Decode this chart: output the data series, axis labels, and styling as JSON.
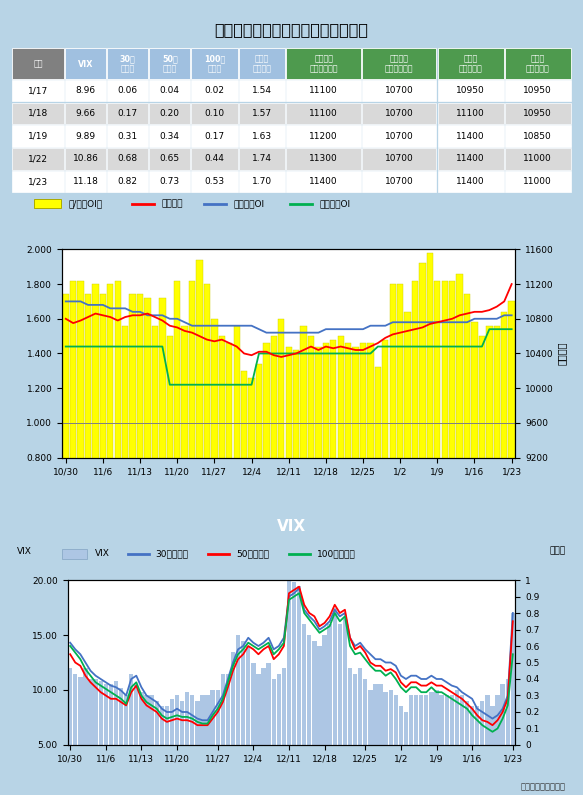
{
  "title": "選擇權波動率指數與賣買權未平倉比",
  "table": {
    "headers": [
      "日期",
      "VIX",
      "30日\n百分位",
      "50日\n百分位",
      "100日\n百分位",
      "賣買權\n未平倉比",
      "買權最大\n未平倉履約價",
      "賣權最大\n未平倉履約價",
      "週買權\n最大履約價",
      "週賣權\n最大履約價"
    ],
    "rows": [
      [
        "1/17",
        "8.96",
        "0.06",
        "0.04",
        "0.02",
        "1.54",
        "11100",
        "10700",
        "10950",
        "10950"
      ],
      [
        "1/18",
        "9.66",
        "0.17",
        "0.20",
        "0.10",
        "1.57",
        "11100",
        "10700",
        "11100",
        "10950"
      ],
      [
        "1/19",
        "9.89",
        "0.31",
        "0.34",
        "0.17",
        "1.63",
        "11200",
        "10700",
        "11400",
        "10850"
      ],
      [
        "1/22",
        "10.86",
        "0.68",
        "0.65",
        "0.44",
        "1.74",
        "11300",
        "10700",
        "11400",
        "11000"
      ],
      [
        "1/23",
        "11.18",
        "0.82",
        "0.73",
        "0.53",
        "1.70",
        "11400",
        "10700",
        "11400",
        "11000"
      ]
    ],
    "header_colors": [
      "#808080",
      "#a0c0e0",
      "#a0c0e0",
      "#a0c0e0",
      "#a0c0e0",
      "#a0c0e0",
      "#4e9a4e",
      "#4e9a4e",
      "#4e9a4e",
      "#4e9a4e"
    ],
    "row_colors": [
      "#ffffff",
      "#d9d9d9"
    ]
  },
  "chart1": {
    "legend": [
      "賣/買權OI比",
      "加權指數",
      "買權最大OI",
      "賣權最大OI"
    ],
    "legend_colors": [
      "#ffff00",
      "#ff0000",
      "#4472c4",
      "#00b050"
    ],
    "x_labels": [
      "10/30",
      "11/6",
      "11/13",
      "11/20",
      "11/27",
      "12/4",
      "12/11",
      "12/18",
      "12/25",
      "1/2",
      "1/9",
      "1/16",
      "1/23"
    ],
    "bar_data": [
      1.74,
      1.82,
      1.82,
      1.74,
      1.8,
      1.74,
      1.8,
      1.82,
      1.56,
      1.74,
      1.74,
      1.72,
      1.56,
      1.72,
      1.5,
      1.82,
      1.56,
      1.82,
      1.94,
      1.8,
      1.6,
      1.5,
      1.46,
      1.56,
      1.3,
      1.26,
      1.34,
      1.46,
      1.5,
      1.6,
      1.44,
      1.42,
      1.56,
      1.5,
      1.44,
      1.46,
      1.48,
      1.5,
      1.46,
      1.44,
      1.46,
      1.46,
      1.32,
      1.48,
      1.8,
      1.8,
      1.64,
      1.82,
      1.92,
      1.98,
      1.82,
      1.82,
      1.82,
      1.86,
      1.74,
      1.58,
      1.5,
      1.56,
      1.56,
      1.64,
      1.7
    ],
    "line_call_oi": [
      1.7,
      1.7,
      1.7,
      1.68,
      1.68,
      1.68,
      1.66,
      1.66,
      1.66,
      1.64,
      1.64,
      1.62,
      1.62,
      1.62,
      1.6,
      1.6,
      1.58,
      1.56,
      1.56,
      1.56,
      1.56,
      1.56,
      1.56,
      1.56,
      1.56,
      1.56,
      1.54,
      1.52,
      1.52,
      1.52,
      1.52,
      1.52,
      1.52,
      1.52,
      1.52,
      1.54,
      1.54,
      1.54,
      1.54,
      1.54,
      1.54,
      1.56,
      1.56,
      1.56,
      1.58,
      1.58,
      1.58,
      1.58,
      1.58,
      1.58,
      1.58,
      1.58,
      1.58,
      1.58,
      1.58,
      1.6,
      1.6,
      1.6,
      1.6,
      1.62,
      1.62
    ],
    "line_put_oi": [
      1.44,
      1.44,
      1.44,
      1.44,
      1.44,
      1.44,
      1.44,
      1.44,
      1.44,
      1.44,
      1.44,
      1.44,
      1.44,
      1.44,
      1.22,
      1.22,
      1.22,
      1.22,
      1.22,
      1.22,
      1.22,
      1.22,
      1.22,
      1.22,
      1.22,
      1.22,
      1.4,
      1.4,
      1.4,
      1.4,
      1.4,
      1.4,
      1.4,
      1.4,
      1.4,
      1.4,
      1.4,
      1.4,
      1.4,
      1.4,
      1.4,
      1.4,
      1.44,
      1.44,
      1.44,
      1.44,
      1.44,
      1.44,
      1.44,
      1.44,
      1.44,
      1.44,
      1.44,
      1.44,
      1.44,
      1.44,
      1.44,
      1.54,
      1.54,
      1.54,
      1.54
    ],
    "ylim_left": [
      0.8,
      2.0
    ],
    "yticks_left": [
      0.8,
      1.0,
      1.2,
      1.4,
      1.6,
      1.8,
      2.0
    ],
    "right_axis_label": "加權指數",
    "right_line_values": [
      10800,
      10750,
      10780,
      10820,
      10860,
      10840,
      10820,
      10780,
      10820,
      10840,
      10840,
      10860,
      10820,
      10780,
      10720,
      10700,
      10660,
      10640,
      10600,
      10560,
      10540,
      10560,
      10520,
      10480,
      10400,
      10380,
      10420,
      10420,
      10380,
      10360,
      10380,
      10400,
      10440,
      10480,
      10440,
      10480,
      10460,
      10480,
      10460,
      10440,
      10440,
      10480,
      10520,
      10580,
      10620,
      10640,
      10660,
      10680,
      10700,
      10740,
      10760,
      10780,
      10800,
      10840,
      10860,
      10880,
      10880,
      10900,
      10940,
      11000,
      11200
    ],
    "ylim_right": [
      9200,
      11600
    ],
    "yticks_right": [
      9200,
      9600,
      10000,
      10400,
      10800,
      11200,
      11600
    ]
  },
  "chart2": {
    "title": "VIX",
    "ylabel_left": "VIX",
    "ylabel_right": "百分位",
    "legend": [
      "VIX",
      "30日百分位",
      "50日百分位",
      "100日百分位"
    ],
    "legend_colors": [
      "#adc6e4",
      "#4472c4",
      "#ff0000",
      "#00b050"
    ],
    "x_labels": [
      "10/30",
      "11/6",
      "11/13",
      "11/20",
      "11/27",
      "12/4",
      "12/11",
      "12/18",
      "12/25",
      "1/2",
      "1/9",
      "1/16",
      "1/23"
    ],
    "bar_vix": [
      12.0,
      11.5,
      11.2,
      12.0,
      11.0,
      11.0,
      10.8,
      10.5,
      10.5,
      10.8,
      10.2,
      9.5,
      11.5,
      10.5,
      9.8,
      9.5,
      9.5,
      9.0,
      8.5,
      8.5,
      9.2,
      9.5,
      9.0,
      9.8,
      9.5,
      9.0,
      9.5,
      9.5,
      10.0,
      10.0,
      11.5,
      11.5,
      13.5,
      15.0,
      14.5,
      14.0,
      12.5,
      11.5,
      12.0,
      12.5,
      11.0,
      11.5,
      12.0,
      20.0,
      19.8,
      19.5,
      16.0,
      15.0,
      14.5,
      14.0,
      15.0,
      16.0,
      17.5,
      16.0,
      16.5,
      12.0,
      11.5,
      12.0,
      11.0,
      10.0,
      10.5,
      10.5,
      9.8,
      10.0,
      9.5,
      8.5,
      8.0,
      9.5,
      9.5,
      9.5,
      9.5,
      9.8,
      10.0,
      9.5,
      9.5,
      9.5,
      10.0,
      9.5,
      9.0,
      8.5,
      8.5,
      9.0,
      9.5,
      8.5,
      9.5,
      10.5,
      11.0,
      17.0
    ],
    "line_30d": [
      0.62,
      0.58,
      0.55,
      0.5,
      0.45,
      0.42,
      0.4,
      0.38,
      0.36,
      0.35,
      0.33,
      0.3,
      0.4,
      0.42,
      0.35,
      0.3,
      0.28,
      0.26,
      0.22,
      0.2,
      0.2,
      0.22,
      0.2,
      0.2,
      0.18,
      0.16,
      0.15,
      0.15,
      0.2,
      0.25,
      0.3,
      0.4,
      0.5,
      0.58,
      0.6,
      0.65,
      0.62,
      0.6,
      0.62,
      0.65,
      0.58,
      0.6,
      0.65,
      0.9,
      0.92,
      0.95,
      0.82,
      0.78,
      0.75,
      0.7,
      0.72,
      0.75,
      0.82,
      0.78,
      0.8,
      0.65,
      0.6,
      0.62,
      0.58,
      0.55,
      0.52,
      0.52,
      0.5,
      0.5,
      0.48,
      0.42,
      0.4,
      0.42,
      0.42,
      0.4,
      0.4,
      0.42,
      0.4,
      0.4,
      0.38,
      0.36,
      0.35,
      0.32,
      0.3,
      0.28,
      0.22,
      0.2,
      0.18,
      0.16,
      0.18,
      0.22,
      0.3,
      0.8
    ],
    "line_50d": [
      0.55,
      0.5,
      0.48,
      0.42,
      0.38,
      0.35,
      0.32,
      0.3,
      0.28,
      0.28,
      0.26,
      0.24,
      0.32,
      0.36,
      0.28,
      0.24,
      0.22,
      0.2,
      0.16,
      0.14,
      0.15,
      0.16,
      0.15,
      0.15,
      0.14,
      0.12,
      0.12,
      0.12,
      0.16,
      0.2,
      0.26,
      0.35,
      0.45,
      0.52,
      0.55,
      0.6,
      0.58,
      0.55,
      0.58,
      0.6,
      0.52,
      0.55,
      0.6,
      0.92,
      0.94,
      0.96,
      0.85,
      0.8,
      0.78,
      0.72,
      0.74,
      0.78,
      0.85,
      0.8,
      0.82,
      0.65,
      0.58,
      0.6,
      0.56,
      0.5,
      0.48,
      0.48,
      0.45,
      0.46,
      0.44,
      0.38,
      0.35,
      0.38,
      0.38,
      0.36,
      0.36,
      0.38,
      0.36,
      0.36,
      0.34,
      0.32,
      0.3,
      0.28,
      0.25,
      0.22,
      0.18,
      0.15,
      0.14,
      0.12,
      0.15,
      0.2,
      0.28,
      0.75
    ],
    "line_100d": [
      0.6,
      0.56,
      0.52,
      0.46,
      0.42,
      0.38,
      0.36,
      0.34,
      0.32,
      0.3,
      0.28,
      0.25,
      0.35,
      0.38,
      0.3,
      0.26,
      0.24,
      0.22,
      0.18,
      0.16,
      0.17,
      0.18,
      0.17,
      0.17,
      0.16,
      0.14,
      0.13,
      0.13,
      0.18,
      0.22,
      0.28,
      0.38,
      0.48,
      0.55,
      0.58,
      0.62,
      0.6,
      0.58,
      0.6,
      0.62,
      0.55,
      0.58,
      0.62,
      0.88,
      0.9,
      0.92,
      0.8,
      0.76,
      0.72,
      0.68,
      0.7,
      0.72,
      0.8,
      0.75,
      0.78,
      0.6,
      0.55,
      0.56,
      0.52,
      0.48,
      0.45,
      0.45,
      0.42,
      0.44,
      0.4,
      0.35,
      0.32,
      0.35,
      0.35,
      0.32,
      0.32,
      0.35,
      0.32,
      0.32,
      0.3,
      0.28,
      0.26,
      0.24,
      0.22,
      0.18,
      0.15,
      0.12,
      0.1,
      0.08,
      0.1,
      0.16,
      0.24,
      0.55
    ],
    "ylim_left": [
      5.0,
      20.0
    ],
    "yticks_left": [
      5.0,
      10.0,
      15.0,
      20.0
    ],
    "ylim_right": [
      0,
      1.0
    ],
    "yticks_right": [
      0,
      0.1,
      0.2,
      0.3,
      0.4,
      0.5,
      0.6,
      0.7,
      0.8,
      0.9,
      1
    ]
  },
  "bg_color": "#b8d4e6",
  "panel_bg": "#ffffff",
  "footer": "統一期貨研究科製作"
}
